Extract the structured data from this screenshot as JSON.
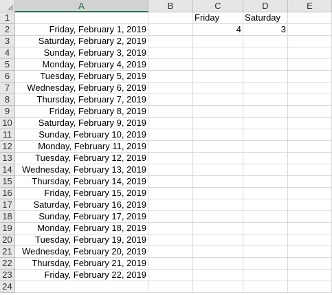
{
  "columns": [
    "A",
    "B",
    "C",
    "D",
    "E"
  ],
  "rows": [
    {
      "num": "1",
      "a": "",
      "b": "",
      "c": "Friday",
      "d": "Saturday",
      "e": ""
    },
    {
      "num": "2",
      "a": "Friday, February 1, 2019",
      "b": "",
      "c": "4",
      "d": "3",
      "e": ""
    },
    {
      "num": "3",
      "a": "Saturday, February 2, 2019",
      "b": "",
      "c": "",
      "d": "",
      "e": ""
    },
    {
      "num": "4",
      "a": "Sunday, February 3, 2019",
      "b": "",
      "c": "",
      "d": "",
      "e": ""
    },
    {
      "num": "5",
      "a": "Monday, February 4, 2019",
      "b": "",
      "c": "",
      "d": "",
      "e": ""
    },
    {
      "num": "6",
      "a": "Tuesday, February 5, 2019",
      "b": "",
      "c": "",
      "d": "",
      "e": ""
    },
    {
      "num": "7",
      "a": "Wednesday, February 6, 2019",
      "b": "",
      "c": "",
      "d": "",
      "e": ""
    },
    {
      "num": "8",
      "a": "Thursday, February 7, 2019",
      "b": "",
      "c": "",
      "d": "",
      "e": ""
    },
    {
      "num": "9",
      "a": "Friday, February 8, 2019",
      "b": "",
      "c": "",
      "d": "",
      "e": ""
    },
    {
      "num": "10",
      "a": "Saturday, February 9, 2019",
      "b": "",
      "c": "",
      "d": "",
      "e": ""
    },
    {
      "num": "11",
      "a": "Sunday, February 10, 2019",
      "b": "",
      "c": "",
      "d": "",
      "e": ""
    },
    {
      "num": "12",
      "a": "Monday, February 11, 2019",
      "b": "",
      "c": "",
      "d": "",
      "e": ""
    },
    {
      "num": "13",
      "a": "Tuesday, February 12, 2019",
      "b": "",
      "c": "",
      "d": "",
      "e": ""
    },
    {
      "num": "14",
      "a": "Wednesday, February 13, 2019",
      "b": "",
      "c": "",
      "d": "",
      "e": ""
    },
    {
      "num": "15",
      "a": "Thursday, February 14, 2019",
      "b": "",
      "c": "",
      "d": "",
      "e": ""
    },
    {
      "num": "16",
      "a": "Friday, February 15, 2019",
      "b": "",
      "c": "",
      "d": "",
      "e": ""
    },
    {
      "num": "17",
      "a": "Saturday, February 16, 2019",
      "b": "",
      "c": "",
      "d": "",
      "e": ""
    },
    {
      "num": "18",
      "a": "Sunday, February 17, 2019",
      "b": "",
      "c": "",
      "d": "",
      "e": ""
    },
    {
      "num": "19",
      "a": "Monday, February 18, 2019",
      "b": "",
      "c": "",
      "d": "",
      "e": ""
    },
    {
      "num": "20",
      "a": "Tuesday, February 19, 2019",
      "b": "",
      "c": "",
      "d": "",
      "e": ""
    },
    {
      "num": "21",
      "a": "Wednesday, February 20, 2019",
      "b": "",
      "c": "",
      "d": "",
      "e": ""
    },
    {
      "num": "22",
      "a": "Thursday, February 21, 2019",
      "b": "",
      "c": "",
      "d": "",
      "e": ""
    },
    {
      "num": "23",
      "a": "Friday, February 22, 2019",
      "b": "",
      "c": "",
      "d": "",
      "e": ""
    },
    {
      "num": "24",
      "a": "",
      "b": "",
      "c": "",
      "d": "",
      "e": ""
    }
  ],
  "colors": {
    "header_bg": "#e6e6e6",
    "active_header_bg": "#d2d2d2",
    "active_accent": "#217346",
    "gridline": "#d9d9d9"
  }
}
